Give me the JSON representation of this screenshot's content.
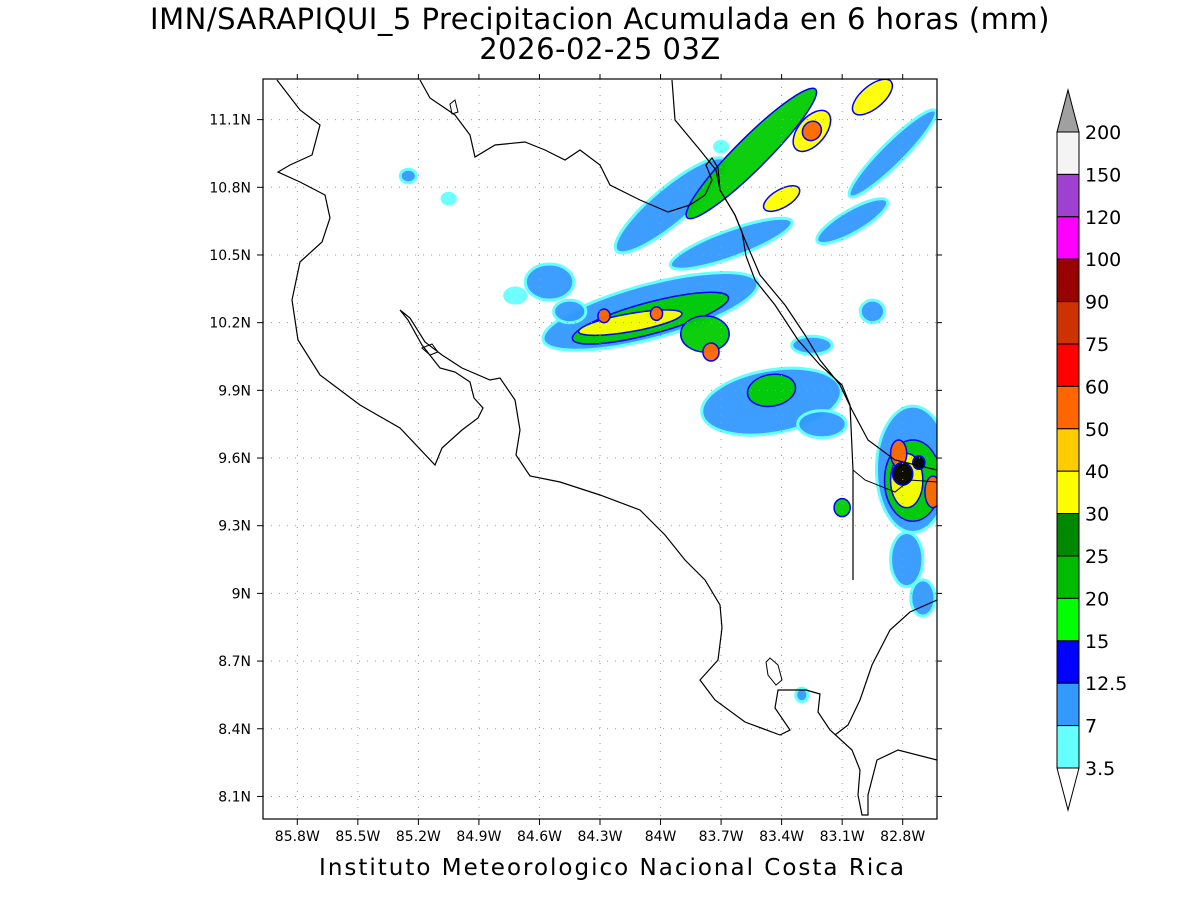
{
  "title": {
    "line1": "IMN/SARAPIQUI_5 Precipitacion Acumulada en 6 horas (mm)",
    "line2": "2026-02-25 03Z"
  },
  "footer": "Instituto Meteorologico Nacional Costa Rica",
  "axes": {
    "lon_ticks": [
      "85.8W",
      "85.5W",
      "85.2W",
      "84.9W",
      "84.6W",
      "84.3W",
      "84W",
      "83.7W",
      "83.4W",
      "83.1W",
      "82.8W"
    ],
    "lat_ticks": [
      "11.1N",
      "10.8N",
      "10.5N",
      "10.2N",
      "9.9N",
      "9.6N",
      "9.3N",
      "9N",
      "8.7N",
      "8.4N",
      "8.1N"
    ],
    "lon_range": [
      -85.97,
      -82.63
    ],
    "lat_range": [
      8.0,
      11.28
    ],
    "grid": true
  },
  "legend": {
    "values": [
      "200",
      "150",
      "120",
      "100",
      "90",
      "75",
      "60",
      "50",
      "40",
      "30",
      "25",
      "20",
      "15",
      "12.5",
      "7",
      "3.5"
    ],
    "colors": [
      "#a0a0a0",
      "#f4f4f4",
      "#a040d0",
      "#ff00ff",
      "#990000",
      "#cc3300",
      "#ff0000",
      "#ff6600",
      "#ffcc00",
      "#ffff00",
      "#008800",
      "#00bb00",
      "#00ff00",
      "#0000ff",
      "#3399ff",
      "#66ffff"
    ]
  },
  "rain_cells": [
    {
      "lon": -83.95,
      "lat": 10.72,
      "level": 1,
      "rlon": 0.35,
      "rlat": 0.08,
      "rot": -40
    },
    {
      "lon": -83.55,
      "lat": 10.95,
      "level": 2,
      "rlon": 0.45,
      "rlat": 0.07,
      "rot": -45
    },
    {
      "lon": -83.25,
      "lat": 11.05,
      "level": 3,
      "rlon": 0.12,
      "rlat": 0.06,
      "rot": -50
    },
    {
      "lon": -83.25,
      "lat": 11.05,
      "level": 4,
      "rlon": 0.05,
      "rlat": 0.04,
      "rot": -50
    },
    {
      "lon": -82.95,
      "lat": 11.2,
      "level": 3,
      "rlon": 0.12,
      "rlat": 0.05,
      "rot": -40
    },
    {
      "lon": -82.85,
      "lat": 10.95,
      "level": 1,
      "rlon": 0.3,
      "rlat": 0.05,
      "rot": -45
    },
    {
      "lon": -83.4,
      "lat": 10.75,
      "level": 3,
      "rlon": 0.1,
      "rlat": 0.04,
      "rot": -30
    },
    {
      "lon": -84.05,
      "lat": 10.25,
      "level": 1,
      "rlon": 0.55,
      "rlat": 0.12,
      "rot": -15
    },
    {
      "lon": -84.05,
      "lat": 10.22,
      "level": 2,
      "rlon": 0.4,
      "rlat": 0.07,
      "rot": -15
    },
    {
      "lon": -84.15,
      "lat": 10.2,
      "level": 3,
      "rlon": 0.26,
      "rlat": 0.04,
      "rot": -10
    },
    {
      "lon": -84.28,
      "lat": 10.23,
      "level": 4,
      "rlon": 0.03,
      "rlat": 0.03,
      "rot": 0
    },
    {
      "lon": -84.02,
      "lat": 10.24,
      "level": 4,
      "rlon": 0.03,
      "rlat": 0.03,
      "rot": 0
    },
    {
      "lon": -83.78,
      "lat": 10.15,
      "level": 2,
      "rlon": 0.12,
      "rlat": 0.08,
      "rot": 0
    },
    {
      "lon": -83.75,
      "lat": 10.07,
      "level": 4,
      "rlon": 0.04,
      "rlat": 0.04,
      "rot": 0
    },
    {
      "lon": -83.65,
      "lat": 10.55,
      "level": 1,
      "rlon": 0.32,
      "rlat": 0.06,
      "rot": -20
    },
    {
      "lon": -83.45,
      "lat": 9.85,
      "level": 1,
      "rlon": 0.35,
      "rlat": 0.14,
      "rot": -10
    },
    {
      "lon": -83.45,
      "lat": 9.9,
      "level": 2,
      "rlon": 0.12,
      "rlat": 0.07,
      "rot": -10
    },
    {
      "lon": -84.55,
      "lat": 10.38,
      "level": 1,
      "rlon": 0.12,
      "rlat": 0.08,
      "rot": 0
    },
    {
      "lon": -84.45,
      "lat": 10.25,
      "level": 1,
      "rlon": 0.08,
      "rlat": 0.05,
      "rot": 0
    },
    {
      "lon": -83.05,
      "lat": 10.65,
      "level": 1,
      "rlon": 0.2,
      "rlat": 0.05,
      "rot": -30
    },
    {
      "lon": -82.75,
      "lat": 9.55,
      "level": 1,
      "rlon": 0.18,
      "rlat": 0.28,
      "rot": 0
    },
    {
      "lon": -82.75,
      "lat": 9.5,
      "level": 2,
      "rlon": 0.14,
      "rlat": 0.18,
      "rot": 0
    },
    {
      "lon": -82.78,
      "lat": 9.5,
      "level": 3,
      "rlon": 0.08,
      "rlat": 0.12,
      "rot": 0
    },
    {
      "lon": -82.82,
      "lat": 9.62,
      "level": 4,
      "rlon": 0.04,
      "rlat": 0.06,
      "rot": 0
    },
    {
      "lon": -82.8,
      "lat": 9.53,
      "level": 5,
      "rlon": 0.05,
      "rlat": 0.05,
      "rot": 0
    },
    {
      "lon": -82.72,
      "lat": 9.58,
      "level": 5,
      "rlon": 0.03,
      "rlat": 0.03,
      "rot": 0
    },
    {
      "lon": -82.65,
      "lat": 9.45,
      "level": 4,
      "rlon": 0.04,
      "rlat": 0.07,
      "rot": 0
    },
    {
      "lon": -82.78,
      "lat": 9.15,
      "level": 1,
      "rlon": 0.08,
      "rlat": 0.12,
      "rot": 0
    },
    {
      "lon": -82.7,
      "lat": 8.98,
      "level": 1,
      "rlon": 0.06,
      "rlat": 0.08,
      "rot": 0
    },
    {
      "lon": -83.2,
      "lat": 9.75,
      "level": 1,
      "rlon": 0.12,
      "rlat": 0.06,
      "rot": 0
    },
    {
      "lon": -83.1,
      "lat": 9.38,
      "level": 2,
      "rlon": 0.04,
      "rlat": 0.04,
      "rot": 0
    },
    {
      "lon": -82.95,
      "lat": 10.25,
      "level": 1,
      "rlon": 0.06,
      "rlat": 0.05,
      "rot": 0
    },
    {
      "lon": -83.25,
      "lat": 10.1,
      "level": 1,
      "rlon": 0.1,
      "rlat": 0.04,
      "rot": 0
    },
    {
      "lon": -85.25,
      "lat": 10.85,
      "level": 1,
      "rlon": 0.04,
      "rlat": 0.03,
      "rot": 0
    },
    {
      "lon": -85.05,
      "lat": 10.75,
      "level": 0,
      "rlon": 0.04,
      "rlat": 0.03,
      "rot": 0
    },
    {
      "lon": -84.72,
      "lat": 10.32,
      "level": 0,
      "rlon": 0.06,
      "rlat": 0.04,
      "rot": 0
    },
    {
      "lon": -83.3,
      "lat": 8.55,
      "level": 1,
      "rlon": 0.03,
      "rlat": 0.03,
      "rot": 0
    },
    {
      "lon": -83.7,
      "lat": 10.98,
      "level": 0,
      "rlon": 0.04,
      "rlat": 0.03,
      "rot": 0
    }
  ]
}
